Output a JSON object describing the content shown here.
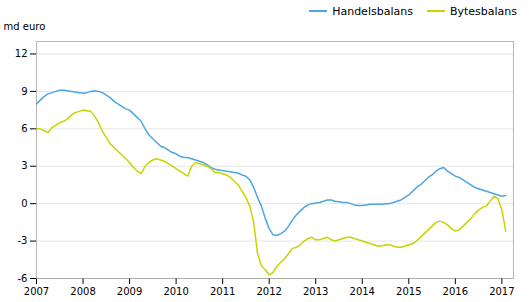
{
  "chart_data": {
    "type": "line",
    "ylabel": "md euro",
    "x": [
      2007.0,
      2007.083,
      2007.167,
      2007.25,
      2007.333,
      2007.417,
      2007.5,
      2007.583,
      2007.667,
      2007.75,
      2007.833,
      2007.917,
      2008.0,
      2008.083,
      2008.167,
      2008.25,
      2008.333,
      2008.417,
      2008.5,
      2008.583,
      2008.667,
      2008.75,
      2008.833,
      2008.917,
      2009.0,
      2009.083,
      2009.167,
      2009.25,
      2009.333,
      2009.417,
      2009.5,
      2009.583,
      2009.667,
      2009.75,
      2009.833,
      2009.917,
      2010.0,
      2010.083,
      2010.167,
      2010.25,
      2010.333,
      2010.417,
      2010.5,
      2010.583,
      2010.667,
      2010.75,
      2010.833,
      2010.917,
      2011.0,
      2011.083,
      2011.167,
      2011.25,
      2011.333,
      2011.417,
      2011.5,
      2011.583,
      2011.667,
      2011.75,
      2011.833,
      2011.917,
      2012.0,
      2012.083,
      2012.167,
      2012.25,
      2012.333,
      2012.417,
      2012.5,
      2012.583,
      2012.667,
      2012.75,
      2012.833,
      2012.917,
      2013.0,
      2013.083,
      2013.167,
      2013.25,
      2013.333,
      2013.417,
      2013.5,
      2013.583,
      2013.667,
      2013.75,
      2013.833,
      2013.917,
      2014.0,
      2014.083,
      2014.167,
      2014.25,
      2014.333,
      2014.417,
      2014.5,
      2014.583,
      2014.667,
      2014.75,
      2014.833,
      2014.917,
      2015.0,
      2015.083,
      2015.167,
      2015.25,
      2015.333,
      2015.417,
      2015.5,
      2015.583,
      2015.667,
      2015.75,
      2015.833,
      2015.917,
      2016.0,
      2016.083,
      2016.167,
      2016.25,
      2016.333,
      2016.417,
      2016.5,
      2016.583,
      2016.667,
      2016.75,
      2016.833,
      2016.917,
      2017.0,
      2017.083
    ],
    "series": [
      {
        "name": "Handelsbalans",
        "color": "#4da6e0",
        "values": [
          8.0,
          8.3,
          8.6,
          8.8,
          8.9,
          9.0,
          9.1,
          9.1,
          9.05,
          9.0,
          8.95,
          8.9,
          8.85,
          8.9,
          9.0,
          9.05,
          9.0,
          8.9,
          8.7,
          8.5,
          8.2,
          8.0,
          7.8,
          7.6,
          7.5,
          7.2,
          6.9,
          6.6,
          6.0,
          5.5,
          5.2,
          4.9,
          4.6,
          4.5,
          4.3,
          4.1,
          4.0,
          3.8,
          3.7,
          3.7,
          3.6,
          3.5,
          3.4,
          3.3,
          3.1,
          2.9,
          2.75,
          2.7,
          2.65,
          2.6,
          2.55,
          2.5,
          2.45,
          2.3,
          2.2,
          1.9,
          1.3,
          0.5,
          -0.2,
          -1.2,
          -2.0,
          -2.5,
          -2.55,
          -2.4,
          -2.2,
          -1.8,
          -1.3,
          -0.9,
          -0.6,
          -0.3,
          -0.1,
          0.0,
          0.05,
          0.1,
          0.2,
          0.3,
          0.3,
          0.2,
          0.15,
          0.1,
          0.1,
          0.0,
          -0.1,
          -0.15,
          -0.15,
          -0.1,
          -0.05,
          -0.05,
          -0.05,
          -0.05,
          0.0,
          0.0,
          0.1,
          0.2,
          0.3,
          0.5,
          0.7,
          1.0,
          1.3,
          1.5,
          1.8,
          2.1,
          2.3,
          2.6,
          2.8,
          2.9,
          2.6,
          2.4,
          2.2,
          2.1,
          1.9,
          1.7,
          1.5,
          1.3,
          1.2,
          1.1,
          1.0,
          0.9,
          0.8,
          0.7,
          0.6,
          0.65
        ]
      },
      {
        "name": "Bytesbalans",
        "color": "#c8d400",
        "values": [
          6.0,
          6.0,
          5.85,
          5.7,
          6.1,
          6.3,
          6.5,
          6.6,
          6.8,
          7.1,
          7.3,
          7.4,
          7.5,
          7.45,
          7.4,
          7.0,
          6.5,
          5.8,
          5.3,
          4.8,
          4.5,
          4.2,
          3.9,
          3.6,
          3.3,
          2.9,
          2.6,
          2.4,
          3.0,
          3.3,
          3.5,
          3.6,
          3.5,
          3.4,
          3.2,
          3.0,
          2.8,
          2.6,
          2.4,
          2.2,
          3.0,
          3.3,
          3.2,
          3.1,
          3.0,
          2.8,
          2.5,
          2.5,
          2.4,
          2.3,
          2.1,
          1.8,
          1.5,
          1.0,
          0.5,
          -0.2,
          -1.5,
          -4.0,
          -5.0,
          -5.3,
          -5.7,
          -5.5,
          -5.0,
          -4.7,
          -4.4,
          -4.0,
          -3.6,
          -3.5,
          -3.3,
          -3.0,
          -2.8,
          -2.7,
          -2.9,
          -2.9,
          -2.8,
          -2.7,
          -2.9,
          -3.0,
          -2.9,
          -2.8,
          -2.7,
          -2.7,
          -2.8,
          -2.9,
          -3.0,
          -3.1,
          -3.2,
          -3.3,
          -3.4,
          -3.4,
          -3.3,
          -3.3,
          -3.4,
          -3.5,
          -3.5,
          -3.4,
          -3.3,
          -3.2,
          -3.0,
          -2.7,
          -2.4,
          -2.1,
          -1.8,
          -1.5,
          -1.4,
          -1.5,
          -1.7,
          -2.0,
          -2.2,
          -2.1,
          -1.8,
          -1.5,
          -1.2,
          -0.8,
          -0.5,
          -0.3,
          -0.2,
          0.2,
          0.6,
          0.4,
          -0.5,
          -2.2
        ]
      }
    ],
    "xlim": [
      2007.0,
      2017.25
    ],
    "xticks": [
      2007,
      2008,
      2009,
      2010,
      2011,
      2012,
      2013,
      2014,
      2015,
      2016,
      2017
    ],
    "ylim": [
      -6,
      13
    ],
    "yticks": [
      -6,
      -3,
      0,
      3,
      6,
      9,
      12
    ],
    "grid": "y",
    "legend": "upper right"
  }
}
